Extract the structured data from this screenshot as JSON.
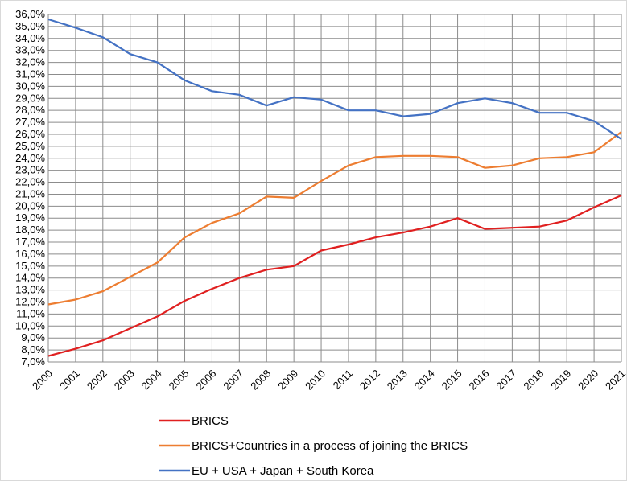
{
  "chart_data": {
    "type": "line",
    "title": "",
    "xlabel": "",
    "ylabel": "",
    "x": [
      "2000",
      "2001",
      "2002",
      "2003",
      "2004",
      "2005",
      "2006",
      "2007",
      "2008",
      "2009",
      "2010",
      "2011",
      "2012",
      "2013",
      "2014",
      "2015",
      "2016",
      "2017",
      "2018",
      "2019",
      "2020",
      "2021"
    ],
    "y_ticks": [
      "7,0%",
      "8,0%",
      "9,0%",
      "10,0%",
      "11,0%",
      "12,0%",
      "13,0%",
      "14,0%",
      "15,0%",
      "16,0%",
      "17,0%",
      "18,0%",
      "19,0%",
      "20,0%",
      "21,0%",
      "22,0%",
      "23,0%",
      "24,0%",
      "25,0%",
      "26,0%",
      "27,0%",
      "28,0%",
      "29,0%",
      "30,0%",
      "31,0%",
      "32,0%",
      "33,0%",
      "34,0%",
      "35,0%",
      "36,0%"
    ],
    "ylim": [
      7,
      36
    ],
    "y_unit": "%",
    "grid": true,
    "legend_position": "bottom",
    "series": [
      {
        "name": "BRICS",
        "color": "#e02020",
        "values": [
          7.5,
          8.1,
          8.8,
          9.8,
          10.8,
          12.1,
          13.1,
          14.0,
          14.7,
          15.0,
          16.3,
          16.8,
          17.4,
          17.8,
          18.3,
          19.0,
          18.1,
          18.2,
          18.3,
          18.8,
          19.9,
          20.9
        ]
      },
      {
        "name": "BRICS+Countries in a process of joining the BRICS",
        "color": "#ed7d31",
        "values": [
          11.8,
          12.2,
          12.9,
          14.1,
          15.3,
          17.4,
          18.6,
          19.4,
          20.8,
          20.7,
          22.1,
          23.4,
          24.1,
          24.2,
          24.2,
          24.1,
          23.2,
          23.4,
          24.0,
          24.1,
          24.5,
          26.2
        ]
      },
      {
        "name": "EU + USA + Japan + South Korea",
        "color": "#4472c4",
        "values": [
          35.6,
          34.9,
          34.1,
          32.7,
          32.0,
          30.5,
          29.6,
          29.3,
          28.4,
          29.1,
          28.9,
          28.0,
          28.0,
          27.5,
          27.7,
          28.6,
          29.0,
          28.6,
          27.8,
          27.8,
          27.1,
          25.6
        ]
      }
    ]
  }
}
